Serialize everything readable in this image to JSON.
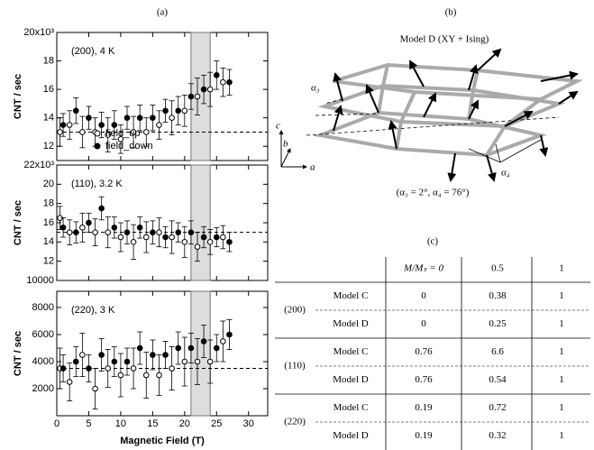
{
  "panel_labels": [
    "(a)",
    "(b)",
    "(c)"
  ],
  "chart_data": [
    {
      "type": "scatter",
      "annotation": "(200), 4 K",
      "ylabel": "CNT / sec",
      "xlim": [
        0,
        33
      ],
      "xticks": [
        0,
        5,
        10,
        15,
        20,
        25,
        30
      ],
      "xtick_labels": false,
      "ylim": [
        11,
        20
      ],
      "yticks": [
        12,
        14,
        16,
        18,
        {
          "value": 20,
          "label": "20x10³"
        }
      ],
      "highlight": [
        21,
        24
      ],
      "reference": 13,
      "legend": "lower left",
      "series": [
        {
          "name": "field_up",
          "color": "#000000",
          "marker": "open",
          "x": [
            0.5,
            2,
            4,
            6,
            8,
            10,
            12,
            14,
            16,
            18,
            20,
            22,
            24,
            26
          ],
          "values": [
            13,
            13.5,
            13,
            13,
            12.8,
            12.5,
            13,
            13,
            13.5,
            14,
            14.5,
            15.5,
            16,
            16.5
          ],
          "errors": [
            1,
            1,
            1.1,
            1,
            1.2,
            1,
            1.1,
            1,
            1,
            1.2,
            1.1,
            1.3,
            1.2,
            1
          ]
        },
        {
          "name": "field_down",
          "color": "#000000",
          "marker": "filled",
          "x": [
            1,
            3,
            5,
            7,
            9,
            11,
            13,
            15,
            17,
            19,
            21,
            23,
            25,
            27
          ],
          "values": [
            13.5,
            14.5,
            14,
            13.5,
            13.5,
            14,
            14,
            14,
            14.5,
            14.5,
            15.5,
            16,
            17,
            16.5
          ],
          "errors": [
            0.8,
            0.9,
            0.8,
            0.9,
            1,
            0.8,
            0.9,
            0.9,
            0.8,
            1,
            0.9,
            1,
            1,
            0.9
          ]
        }
      ]
    },
    {
      "type": "scatter",
      "annotation": "(110), 3.2 K",
      "ylabel": "CNT / sec",
      "xlim": [
        0,
        33
      ],
      "xticks": [
        0,
        5,
        10,
        15,
        20,
        25,
        30
      ],
      "xtick_labels": false,
      "ylim": [
        10,
        22
      ],
      "yticks": [
        {
          "value": 10,
          "label": "10000"
        },
        12,
        14,
        16,
        18,
        20,
        {
          "value": 22,
          "label": "22x10³"
        }
      ],
      "highlight": [
        21,
        24
      ],
      "reference": 15,
      "series": [
        {
          "color": "#000000",
          "marker": "open",
          "x": [
            0.5,
            2,
            4,
            6,
            8,
            10,
            12,
            14,
            16,
            18,
            20,
            22,
            24,
            26
          ],
          "values": [
            16.5,
            15,
            15.5,
            15,
            15,
            14.5,
            14,
            14.5,
            15,
            14.5,
            14,
            13.5,
            14,
            14.5
          ],
          "errors": [
            1.2,
            1.3,
            1.5,
            1.4,
            1.6,
            1.5,
            1.8,
            1.6,
            1.5,
            1.7,
            1.6,
            1.5,
            1.3,
            1.2
          ]
        },
        {
          "color": "#000000",
          "marker": "filled",
          "x": [
            1,
            3,
            5,
            7,
            9,
            11,
            13,
            15,
            17,
            19,
            21,
            23,
            25,
            27
          ],
          "values": [
            15.5,
            15,
            16,
            17.5,
            15.5,
            15,
            15.5,
            15,
            14.5,
            15,
            15,
            14.5,
            14.5,
            14
          ],
          "errors": [
            1,
            1.1,
            1,
            1.2,
            1.1,
            1.2,
            1.1,
            1.2,
            1.1,
            1,
            1.2,
            1.1,
            1,
            1
          ]
        }
      ]
    },
    {
      "type": "scatter",
      "annotation": "(220), 3 K",
      "ylabel": "CNT / sec",
      "xlabel": "Magnetic Field (T)",
      "xlim": [
        0,
        33
      ],
      "xticks": [
        0,
        5,
        10,
        15,
        20,
        25,
        30
      ],
      "ylim": [
        0,
        9200
      ],
      "yticks": [
        2000,
        4000,
        6000,
        8000
      ],
      "highlight": [
        21,
        24
      ],
      "reference": 3500,
      "series": [
        {
          "color": "#000000",
          "marker": "open",
          "x": [
            0.5,
            2,
            4,
            6,
            8,
            10,
            12,
            14,
            16,
            18,
            20,
            22,
            24,
            26
          ],
          "values": [
            3500,
            2500,
            4500,
            2000,
            3500,
            3000,
            3500,
            3000,
            3000,
            3500,
            4000,
            4000,
            4000,
            5500
          ],
          "errors": [
            1500,
            1400,
            1600,
            1500,
            1400,
            1600,
            1500,
            1700,
            1500,
            1600,
            1800,
            1700,
            1600,
            1500
          ]
        },
        {
          "color": "#000000",
          "marker": "filled",
          "x": [
            1,
            3,
            5,
            7,
            9,
            11,
            13,
            15,
            17,
            19,
            21,
            23,
            25,
            27
          ],
          "values": [
            3500,
            4000,
            3500,
            4500,
            4000,
            4000,
            5000,
            4500,
            4500,
            5000,
            5000,
            5500,
            5000,
            6000
          ],
          "errors": [
            1000,
            1100,
            1000,
            1200,
            1100,
            1000,
            1200,
            1100,
            1000,
            1200,
            1100,
            1200,
            1000,
            1100
          ]
        }
      ]
    }
  ],
  "diagram": {
    "title": "Model D (XY + Ising)",
    "angle_labels": [
      "α₃",
      "α₄"
    ],
    "axes": [
      "c",
      "b",
      "a"
    ],
    "caption": "(α₃ = 2°, α₄ = 76°)"
  },
  "table": {
    "columns": [
      "M/Mₛ = 0",
      "0.5",
      "1"
    ],
    "groups": [
      {
        "label": "(200)",
        "rows": [
          [
            "Model C",
            "0",
            "0.38",
            "1"
          ],
          [
            "Model D",
            "0",
            "0.25",
            "1"
          ]
        ]
      },
      {
        "label": "(110)",
        "rows": [
          [
            "Model C",
            "0.76",
            "6.6",
            "1"
          ],
          [
            "Model D",
            "0.76",
            "0.54",
            "1"
          ]
        ]
      },
      {
        "label": "(220)",
        "rows": [
          [
            "Model C",
            "0.19",
            "0.72",
            "1"
          ],
          [
            "Model D",
            "0.19",
            "0.32",
            "1"
          ]
        ]
      }
    ]
  }
}
